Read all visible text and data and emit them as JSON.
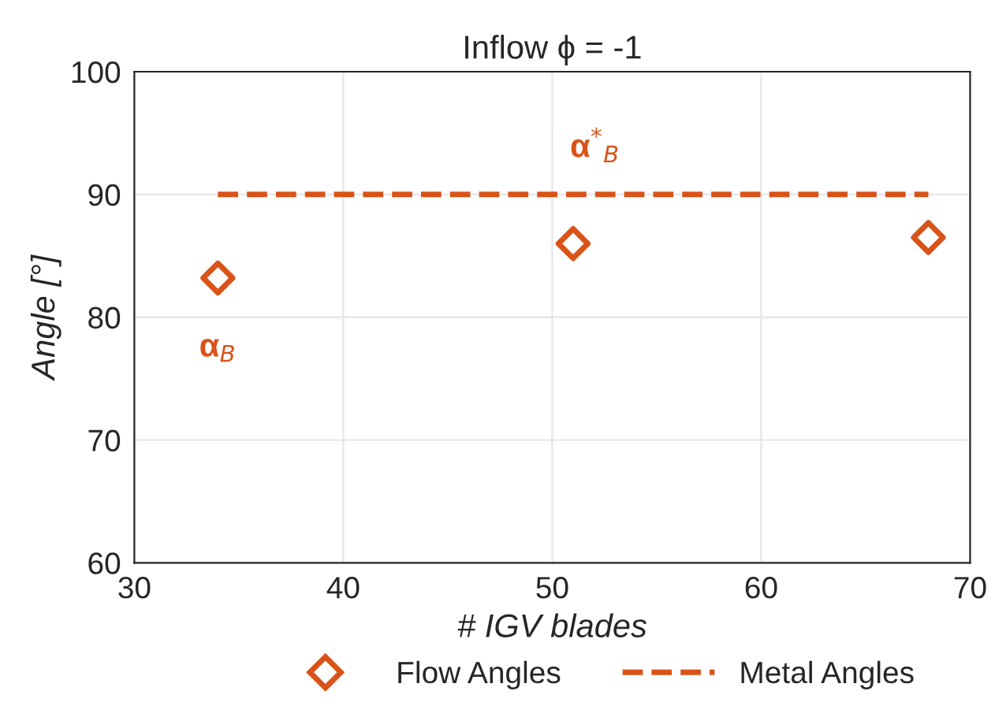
{
  "chart_data": {
    "type": "scatter",
    "title": "Inflow ϕ = -1",
    "xlabel": "# IGV blades",
    "ylabel": "Angle [°]",
    "series": [
      {
        "name": "Flow Angles",
        "color": "#d95319",
        "x": [
          34,
          51,
          68
        ],
        "values": [
          83.2,
          86,
          86.5
        ],
        "marker": "diamond"
      },
      {
        "name": "Metal Angles",
        "type": "line",
        "color": "#d95319",
        "x": [
          34,
          68
        ],
        "values": [
          90,
          90
        ],
        "line_style": "dashed",
        "marker": "none"
      }
    ],
    "annotations": [
      "α$_{B}$",
      "α$^{*}$$_{B}$"
    ],
    "xlim": [
      30,
      70
    ],
    "xticks": [
      30,
      40,
      50,
      60,
      70
    ],
    "ylim": [
      60,
      100
    ],
    "yticks": [
      60,
      70,
      80,
      90,
      100
    ],
    "grid": true,
    "legend": "bottom"
  }
}
